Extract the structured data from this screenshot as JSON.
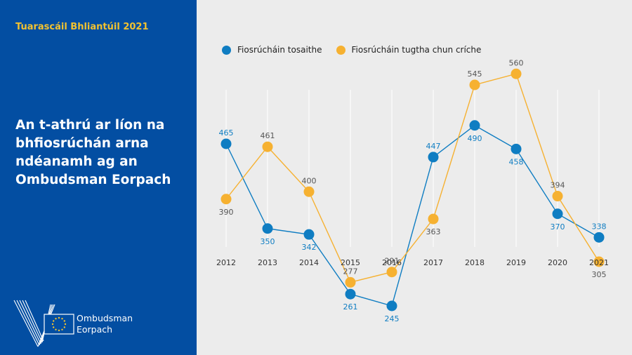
{
  "report_title": "Tuarascáil Bhliantúil 2021",
  "heading": "An t-athrú ar líon na bhfiosrúchán arna ndéanamh ag an Ombudsman Eorpach",
  "logo": {
    "line1": "Ombudsman",
    "line2": "Eorpach"
  },
  "colors": {
    "sidebar": "#034ea2",
    "accent": "#f2c230",
    "series_opened": "#0f7dc2",
    "series_closed": "#f6b131",
    "background": "#ececec"
  },
  "legend": [
    "Fiosrúcháin tosaithe",
    "Fiosrúcháin tugtha chun críche"
  ],
  "chart_data": {
    "type": "line",
    "x": [
      "2012",
      "2013",
      "2014",
      "2015",
      "2016",
      "2017",
      "2018",
      "2019",
      "2020",
      "2021"
    ],
    "series": [
      {
        "name": "Fiosrúcháin tosaithe",
        "values": [
          465,
          350,
          342,
          261,
          245,
          447,
          490,
          458,
          370,
          338
        ],
        "color": "#0f7dc2"
      },
      {
        "name": "Fiosrúcháin tugtha chun críche",
        "values": [
          390,
          461,
          400,
          277,
          291,
          363,
          545,
          560,
          394,
          305
        ],
        "color": "#f6b131"
      }
    ],
    "grid": false,
    "legend_position": "top-left"
  }
}
